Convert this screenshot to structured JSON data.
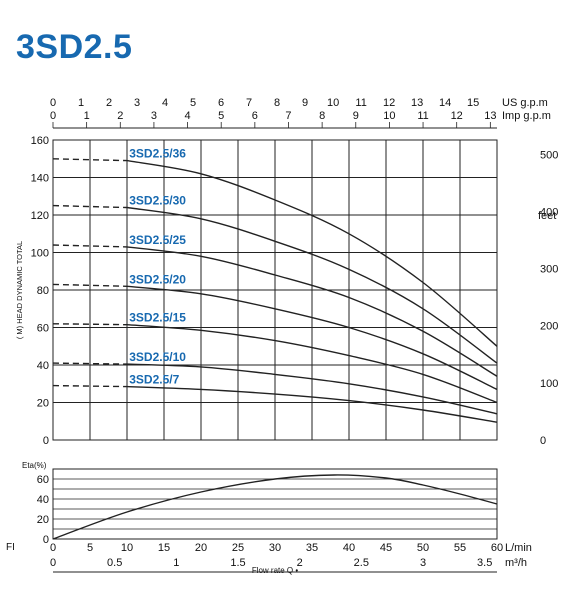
{
  "title": "3SD2.5",
  "chart_data": [
    {
      "type": "line",
      "name": "head",
      "ylabel": "( M) HEAD DYNAMIC TOTAL",
      "ylim": [
        0,
        160
      ],
      "xlim": [
        0,
        60
      ],
      "y_ticks": [
        0,
        20,
        40,
        60,
        80,
        100,
        120,
        140,
        160
      ],
      "right_axis": {
        "label": "feet",
        "ticks": [
          0,
          100,
          200,
          300,
          400,
          500
        ]
      },
      "top_axes": [
        {
          "label": "US g.p.m",
          "ticks": [
            0,
            1,
            2,
            3,
            4,
            5,
            6,
            7,
            8,
            9,
            10,
            11,
            12,
            13,
            14,
            15
          ]
        },
        {
          "label": "Imp g.p.m",
          "ticks": [
            0,
            1,
            2,
            3,
            4,
            5,
            6,
            7,
            8,
            9,
            10,
            11,
            12,
            13
          ]
        }
      ],
      "grid": true,
      "series": [
        {
          "name": "3SD2.5/36",
          "x": [
            0,
            10,
            20,
            30,
            40,
            50,
            60
          ],
          "values": [
            150,
            149,
            142,
            128,
            110,
            84,
            50
          ],
          "dashed_until": 10
        },
        {
          "name": "3SD2.5/30",
          "x": [
            0,
            10,
            20,
            30,
            40,
            50,
            60
          ],
          "values": [
            125,
            124,
            118,
            106,
            91,
            70,
            41
          ],
          "dashed_until": 10
        },
        {
          "name": "3SD2.5/25",
          "x": [
            0,
            10,
            20,
            30,
            40,
            50,
            60
          ],
          "values": [
            104,
            103,
            98,
            88,
            76,
            58,
            34
          ],
          "dashed_until": 10
        },
        {
          "name": "3SD2.5/20",
          "x": [
            0,
            10,
            20,
            30,
            40,
            50,
            60
          ],
          "values": [
            83,
            82,
            78,
            70,
            60,
            46,
            27
          ],
          "dashed_until": 10
        },
        {
          "name": "3SD2.5/15",
          "x": [
            0,
            10,
            20,
            30,
            40,
            50,
            60
          ],
          "values": [
            62,
            61.5,
            58.5,
            53,
            45,
            35,
            20
          ],
          "dashed_until": 10
        },
        {
          "name": "3SD2.5/10",
          "x": [
            0,
            10,
            20,
            30,
            40,
            50,
            60
          ],
          "values": [
            41,
            40.5,
            39,
            35,
            30,
            23,
            14
          ],
          "dashed_until": 10
        },
        {
          "name": "3SD2.5/7",
          "x": [
            0,
            10,
            20,
            30,
            40,
            50,
            60
          ],
          "values": [
            29,
            28.5,
            27,
            24.5,
            21,
            16,
            9.5
          ],
          "dashed_until": 10
        }
      ]
    },
    {
      "type": "line",
      "name": "efficiency",
      "ylabel": "Eta(%)",
      "ylim": [
        0,
        70
      ],
      "xlim": [
        0,
        60
      ],
      "y_ticks": [
        0,
        20,
        40,
        60
      ],
      "grid": true,
      "series": [
        {
          "name": "Eta",
          "x": [
            0,
            10,
            20,
            30,
            38,
            45,
            50,
            55,
            60
          ],
          "values": [
            0,
            27,
            47,
            60,
            64,
            61,
            54,
            45,
            35
          ]
        }
      ],
      "x_axis": {
        "ticks": [
          0,
          5,
          10,
          15,
          20,
          25,
          30,
          35,
          40,
          45,
          50,
          55,
          60
        ],
        "unit": "L/min"
      },
      "x_axis2": {
        "ticks": [
          "0",
          "0.5",
          "1",
          "1.5",
          "2",
          "2.5",
          "3",
          "3.5"
        ],
        "tick_values": [
          0,
          0.5,
          1,
          1.5,
          2,
          2.5,
          3,
          3.5
        ],
        "unit": "m³/h"
      },
      "xlabel": "Flow rate Q •",
      "left_note": "FI"
    }
  ]
}
